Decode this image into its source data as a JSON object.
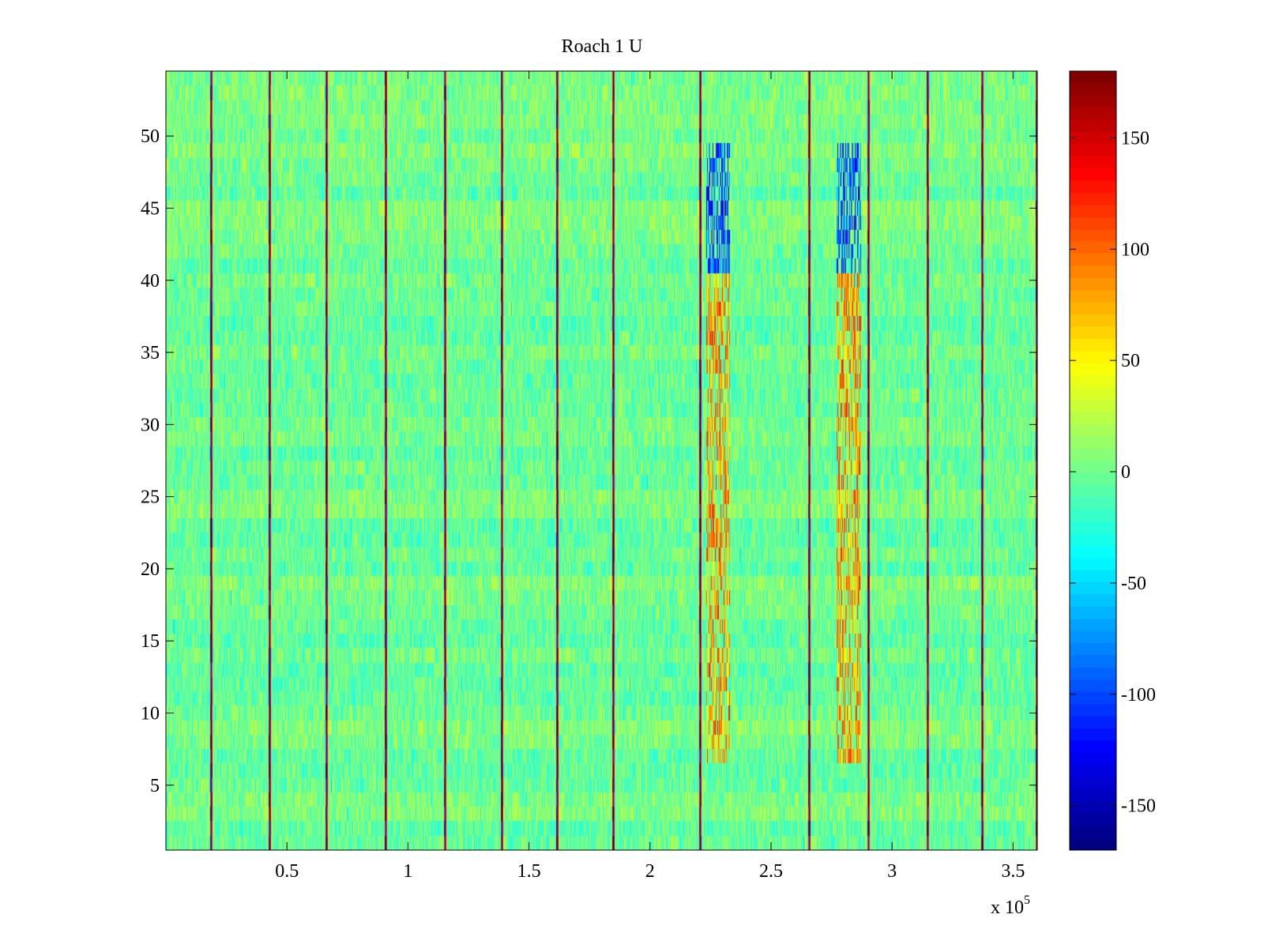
{
  "chart_data": {
    "type": "heatmap",
    "title": "Roach 1 U",
    "xlabel": "",
    "ylabel": "",
    "x_range": [
      0,
      360000
    ],
    "y_range": [
      0.5,
      54.5
    ],
    "rows": 54,
    "x_multiplier_base": "x 10",
    "x_multiplier_exponent": "5",
    "x_ticks": [
      {
        "value": 50000,
        "label": "0.5"
      },
      {
        "value": 100000,
        "label": "1"
      },
      {
        "value": 150000,
        "label": "1.5"
      },
      {
        "value": 200000,
        "label": "2"
      },
      {
        "value": 250000,
        "label": "2.5"
      },
      {
        "value": 300000,
        "label": "3"
      },
      {
        "value": 350000,
        "label": "3.5"
      }
    ],
    "y_ticks": [
      {
        "value": 5,
        "label": "5"
      },
      {
        "value": 10,
        "label": "10"
      },
      {
        "value": 15,
        "label": "15"
      },
      {
        "value": 20,
        "label": "20"
      },
      {
        "value": 25,
        "label": "25"
      },
      {
        "value": 30,
        "label": "30"
      },
      {
        "value": 35,
        "label": "35"
      },
      {
        "value": 40,
        "label": "40"
      },
      {
        "value": 45,
        "label": "45"
      },
      {
        "value": 50,
        "label": "50"
      }
    ],
    "colorbar": {
      "range": [
        -170,
        180
      ],
      "colormap": "jet",
      "ticks": [
        {
          "value": 150,
          "label": "150"
        },
        {
          "value": 100,
          "label": "100"
        },
        {
          "value": 50,
          "label": "50"
        },
        {
          "value": 0,
          "label": "0"
        },
        {
          "value": -50,
          "label": "-50"
        },
        {
          "value": -100,
          "label": "-100"
        },
        {
          "value": -150,
          "label": "-150"
        }
      ]
    },
    "background_value_range": [
      -25,
      25
    ],
    "spike_columns_x": [
      18500,
      42500,
      66000,
      90500,
      115000,
      138500,
      161500,
      184500,
      220500,
      265500,
      290000,
      314500,
      337000,
      359500
    ],
    "events": [
      {
        "x_range": [
          223000,
          233000
        ],
        "row_range": [
          7,
          40
        ],
        "value_range": [
          40,
          130
        ],
        "label": "event-1-positive"
      },
      {
        "x_range": [
          223000,
          233000
        ],
        "row_range": [
          41,
          49
        ],
        "value_range": [
          -140,
          -60
        ],
        "label": "event-1-negative"
      },
      {
        "x_range": [
          277000,
          287000
        ],
        "row_range": [
          7,
          40
        ],
        "value_range": [
          40,
          130
        ],
        "label": "event-2-positive"
      },
      {
        "x_range": [
          277000,
          287000
        ],
        "row_range": [
          41,
          49
        ],
        "value_range": [
          -140,
          -60
        ],
        "label": "event-2-negative"
      }
    ]
  }
}
